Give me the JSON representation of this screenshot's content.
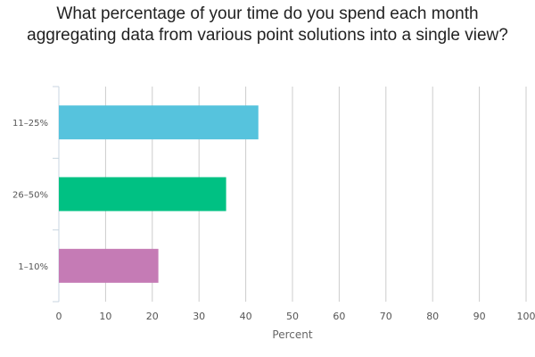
{
  "chart_data": {
    "type": "bar",
    "orientation": "horizontal",
    "title": "What percentage of your time do you spend each month aggregating data from various point solutions into a single view?",
    "xlabel": "Percent",
    "ylabel": "",
    "categories": [
      "11–25%",
      "26–50%",
      "1–10%"
    ],
    "values": [
      42.7,
      35.8,
      21.3
    ],
    "colors": [
      "#56c3dd",
      "#00c183",
      "#c57bb5"
    ],
    "xlim": [
      0,
      100
    ],
    "xticks": [
      0,
      10,
      20,
      30,
      40,
      50,
      60,
      70,
      80,
      90,
      100
    ],
    "grid": true,
    "legend": "none"
  }
}
